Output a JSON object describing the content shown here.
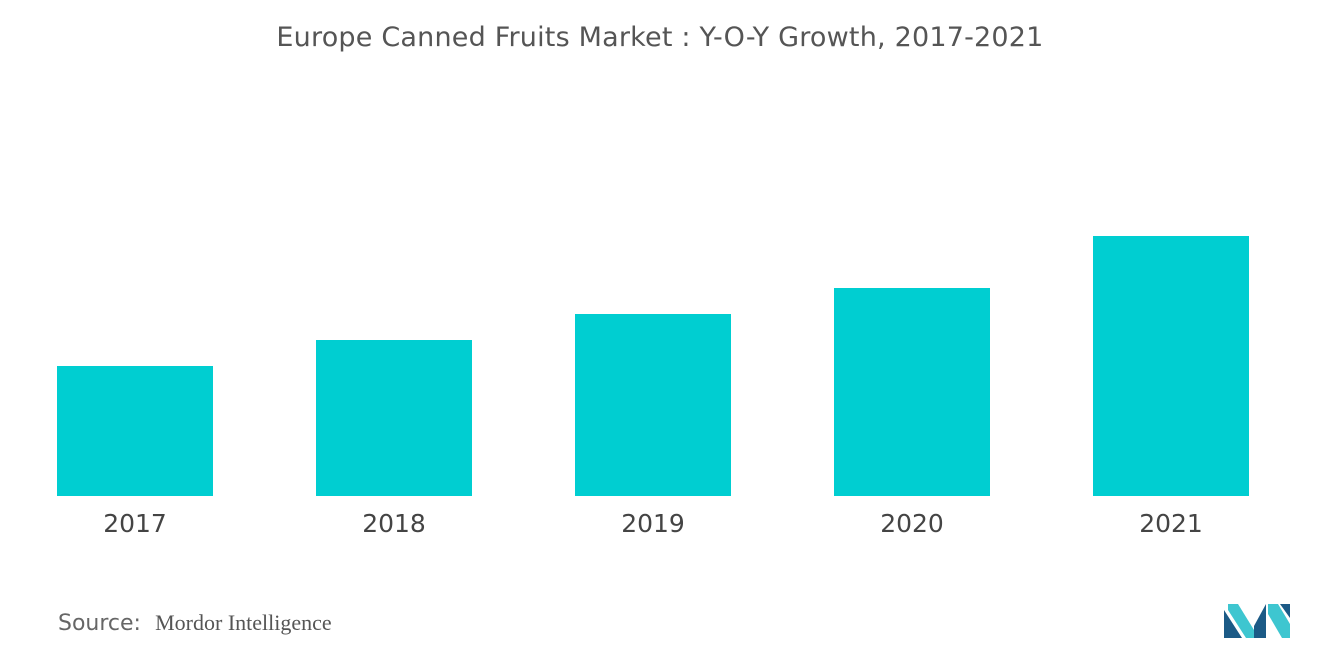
{
  "colors": {
    "bar": "#00CED1",
    "title": "#555555",
    "tick_label": "#444444",
    "logo_dark": "#1B5A86",
    "logo_light": "#3EC6D0"
  },
  "chart_data": {
    "type": "bar",
    "title": "Europe Canned Fruits Market : Y-O-Y Growth, 2017-2021",
    "categories": [
      "2017",
      "2018",
      "2019",
      "2020",
      "2021"
    ],
    "values": [
      1.0,
      1.2,
      1.4,
      1.6,
      2.0
    ],
    "ylim": [
      0,
      2.0
    ],
    "y_axis_visible": false,
    "grid": false,
    "legend": "none"
  },
  "source": {
    "label": "Source:",
    "value": "Mordor Intelligence"
  },
  "logo": {
    "icon": "mordor-intelligence-logo"
  }
}
